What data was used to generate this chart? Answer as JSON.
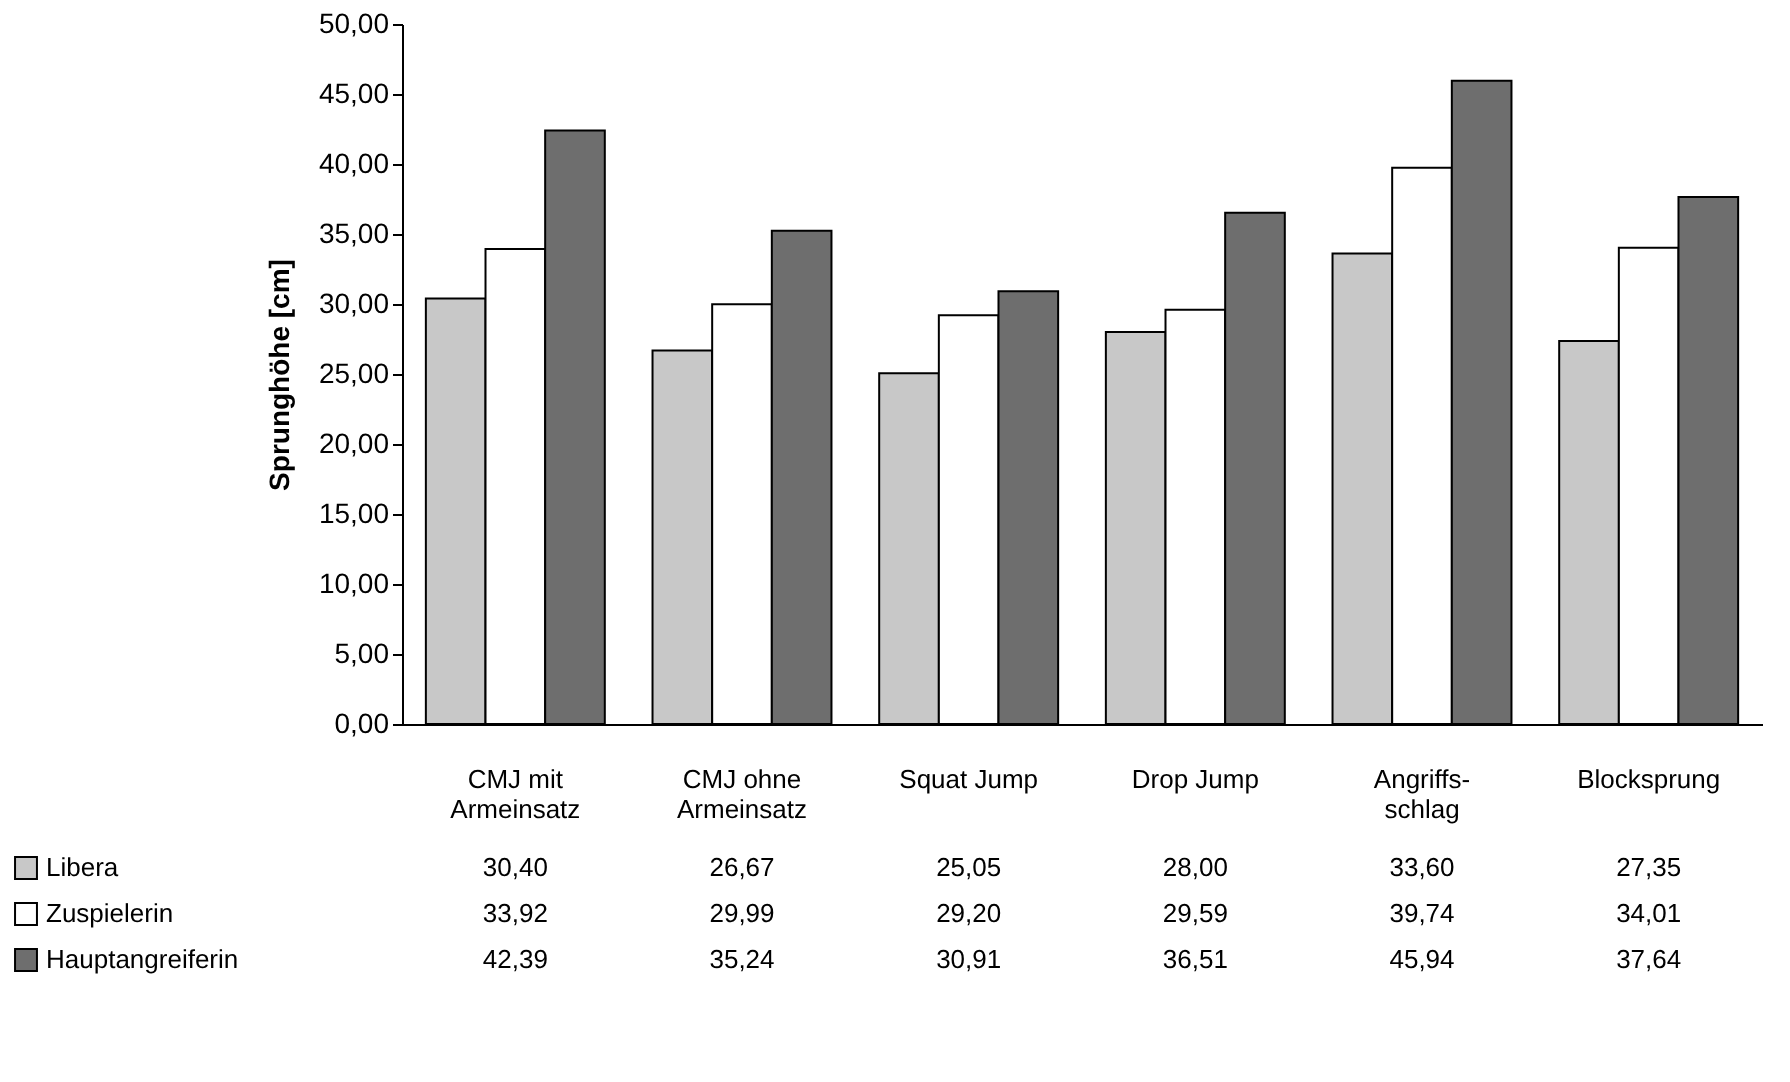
{
  "chart_data": {
    "type": "bar",
    "ylabel": "Sprunghöhe [cm]",
    "categories": [
      "CMJ mit Armeinsatz",
      "CMJ ohne Armeinsatz",
      "Squat Jump",
      "Drop Jump",
      "Angriffs-schlag",
      "Blocksprung"
    ],
    "series": [
      {
        "name": "Libera",
        "color": "#c8c8c8",
        "values": [
          30.4,
          26.67,
          25.05,
          28.0,
          33.6,
          27.35
        ],
        "value_labels": [
          "30,40",
          "26,67",
          "25,05",
          "28,00",
          "33,60",
          "27,35"
        ]
      },
      {
        "name": "Zuspielerin",
        "color": "#ffffff",
        "values": [
          33.92,
          29.99,
          29.2,
          29.59,
          39.74,
          34.01
        ],
        "value_labels": [
          "33,92",
          "29,99",
          "29,20",
          "29,59",
          "39,74",
          "34,01"
        ]
      },
      {
        "name": "Hauptangreiferin",
        "color": "#6e6e6e",
        "values": [
          42.39,
          35.24,
          30.91,
          36.51,
          45.94,
          37.64
        ],
        "value_labels": [
          "42,39",
          "35,24",
          "30,91",
          "36,51",
          "45,94",
          "37,64"
        ]
      }
    ],
    "ylim": [
      0,
      50
    ],
    "yticks": [
      {
        "value": 0,
        "label": "0,00"
      },
      {
        "value": 5,
        "label": "5,00"
      },
      {
        "value": 10,
        "label": "10,00"
      },
      {
        "value": 15,
        "label": "15,00"
      },
      {
        "value": 20,
        "label": "20,00"
      },
      {
        "value": 25,
        "label": "25,00"
      },
      {
        "value": 30,
        "label": "30,00"
      },
      {
        "value": 35,
        "label": "35,00"
      },
      {
        "value": 40,
        "label": "40,00"
      },
      {
        "value": 45,
        "label": "45,00"
      },
      {
        "value": 50,
        "label": "50,00"
      }
    ],
    "legend": "bottom",
    "grid": false
  }
}
